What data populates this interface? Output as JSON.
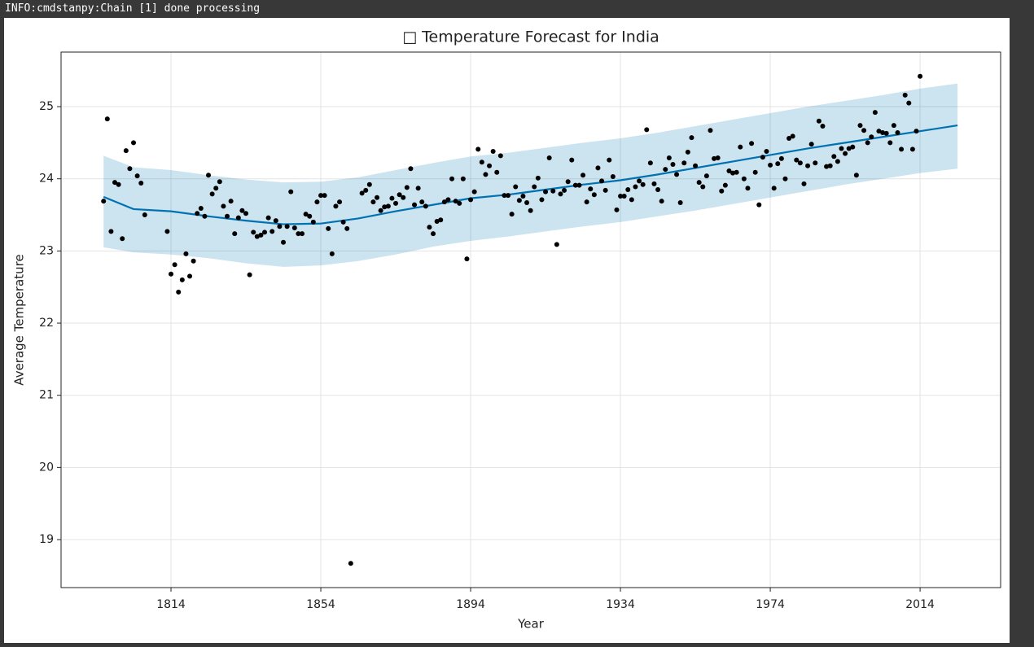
{
  "log": "INFO:cmdstanpy:Chain [1] done processing",
  "chart_data": {
    "type": "forecast",
    "title": "□ Temperature Forecast for India",
    "x_label": "Year",
    "y_label": "Average Temperature",
    "xlim": [
      1784.65,
      2035.5
    ],
    "ylim": [
      18.335,
      25.756
    ],
    "xticks": [
      1814,
      1854,
      1894,
      1934,
      1974,
      2014
    ],
    "yticks": [
      19,
      20,
      21,
      22,
      23,
      24,
      25
    ],
    "grid": true,
    "points": {
      "color": "#000000",
      "x": [
        1796,
        1797,
        1798,
        1799,
        1800,
        1801,
        1802,
        1803,
        1804,
        1805,
        1806,
        1807,
        1813,
        1814,
        1815,
        1816,
        1817,
        1818,
        1819,
        1820,
        1821,
        1822,
        1823,
        1824,
        1825,
        1826,
        1827,
        1828,
        1829,
        1830,
        1831,
        1832,
        1833,
        1834,
        1835,
        1836,
        1837,
        1838,
        1839,
        1840,
        1841,
        1842,
        1843,
        1844,
        1845,
        1846,
        1847,
        1848,
        1849,
        1850,
        1851,
        1852,
        1853,
        1854,
        1855,
        1856,
        1857,
        1858,
        1859,
        1860,
        1861,
        1862,
        1865,
        1866,
        1867,
        1868,
        1869,
        1870,
        1871,
        1872,
        1873,
        1874,
        1875,
        1876,
        1877,
        1878,
        1879,
        1880,
        1881,
        1882,
        1883,
        1884,
        1885,
        1886,
        1887,
        1888,
        1889,
        1890,
        1891,
        1892,
        1893,
        1894,
        1895,
        1896,
        1897,
        1898,
        1899,
        1900,
        1901,
        1902,
        1903,
        1904,
        1905,
        1906,
        1907,
        1908,
        1909,
        1910,
        1911,
        1912,
        1913,
        1914,
        1915,
        1916,
        1917,
        1918,
        1919,
        1920,
        1921,
        1922,
        1923,
        1924,
        1925,
        1926,
        1927,
        1928,
        1929,
        1930,
        1931,
        1932,
        1933,
        1934,
        1935,
        1936,
        1937,
        1938,
        1939,
        1940,
        1941,
        1942,
        1943,
        1944,
        1945,
        1946,
        1947,
        1948,
        1949,
        1950,
        1951,
        1952,
        1953,
        1954,
        1955,
        1956,
        1957,
        1958,
        1959,
        1960,
        1961,
        1962,
        1963,
        1964,
        1965,
        1966,
        1967,
        1968,
        1969,
        1970,
        1971,
        1972,
        1973,
        1974,
        1975,
        1976,
        1977,
        1978,
        1979,
        1980,
        1981,
        1982,
        1983,
        1984,
        1985,
        1986,
        1987,
        1988,
        1989,
        1990,
        1991,
        1992,
        1993,
        1994,
        1995,
        1996,
        1997,
        1998,
        1999,
        2000,
        2001,
        2002,
        2003,
        2004,
        2005,
        2006,
        2007,
        2008,
        2009,
        2010,
        2011,
        2012,
        2013,
        2014
      ],
      "values": [
        23.69,
        24.83,
        23.27,
        23.95,
        23.92,
        23.17,
        24.39,
        24.14,
        24.5,
        24.04,
        23.94,
        23.5,
        23.27,
        22.68,
        22.81,
        22.43,
        22.6,
        22.96,
        22.65,
        22.86,
        23.52,
        23.59,
        23.48,
        24.05,
        23.79,
        23.87,
        23.96,
        23.62,
        23.48,
        23.69,
        23.24,
        23.46,
        23.56,
        23.52,
        22.67,
        23.26,
        23.2,
        23.22,
        23.26,
        23.46,
        23.27,
        23.42,
        23.34,
        23.12,
        23.34,
        23.82,
        23.32,
        23.24,
        23.24,
        23.51,
        23.48,
        23.4,
        23.68,
        23.77,
        23.77,
        23.31,
        22.96,
        23.62,
        23.68,
        23.4,
        23.31,
        18.67,
        23.8,
        23.84,
        23.92,
        23.68,
        23.74,
        23.56,
        23.61,
        23.62,
        23.73,
        23.66,
        23.78,
        23.74,
        23.88,
        24.14,
        23.64,
        23.87,
        23.68,
        23.62,
        23.33,
        23.24,
        23.41,
        23.43,
        23.68,
        23.71,
        24.0,
        23.69,
        23.66,
        24.0,
        22.89,
        23.71,
        23.82,
        24.41,
        24.23,
        24.06,
        24.18,
        24.38,
        24.09,
        24.32,
        23.77,
        23.77,
        23.51,
        23.89,
        23.7,
        23.76,
        23.67,
        23.56,
        23.89,
        24.01,
        23.71,
        23.82,
        24.29,
        23.83,
        23.09,
        23.79,
        23.84,
        23.96,
        24.26,
        23.91,
        23.91,
        24.05,
        23.68,
        23.86,
        23.78,
        24.15,
        23.97,
        23.84,
        24.26,
        24.03,
        23.57,
        23.76,
        23.76,
        23.85,
        23.71,
        23.89,
        23.97,
        23.92,
        24.68,
        24.22,
        23.93,
        23.85,
        23.69,
        24.13,
        24.29,
        24.2,
        24.06,
        23.67,
        24.22,
        24.37,
        24.57,
        24.18,
        23.95,
        23.89,
        24.04,
        24.67,
        24.28,
        24.29,
        23.83,
        23.91,
        24.11,
        24.08,
        24.09,
        24.44,
        24.0,
        23.87,
        24.49,
        24.09,
        23.64,
        24.3,
        24.38,
        24.19,
        23.87,
        24.21,
        24.28,
        24.0,
        24.56,
        24.59,
        24.26,
        24.22,
        23.93,
        24.18,
        24.48,
        24.22,
        24.8,
        24.73,
        24.17,
        24.18,
        24.31,
        24.24,
        24.42,
        24.35,
        24.42,
        24.44,
        24.05,
        24.74,
        24.67,
        24.5,
        24.58,
        24.92,
        24.66,
        24.64,
        24.63,
        24.5,
        24.74,
        24.64,
        24.41,
        25.16,
        25.05,
        24.41,
        24.66,
        25.42
      ]
    },
    "forecast": {
      "color": "#0072b2",
      "band_color": "#0072b2",
      "band_opacity": 0.2,
      "x": [
        1796,
        1804,
        1814,
        1824,
        1834,
        1844,
        1854,
        1864,
        1874,
        1884,
        1894,
        1904,
        1914,
        1924,
        1934,
        1944,
        1954,
        1964,
        1974,
        1984,
        1994,
        2004,
        2014,
        2024
      ],
      "values": [
        23.75,
        23.58,
        23.55,
        23.48,
        23.42,
        23.37,
        23.38,
        23.45,
        23.55,
        23.64,
        23.73,
        23.78,
        23.85,
        23.92,
        23.98,
        24.06,
        24.15,
        24.24,
        24.33,
        24.42,
        24.5,
        24.58,
        24.66,
        24.74
      ],
      "upper": [
        24.32,
        24.16,
        24.12,
        24.05,
        23.99,
        23.95,
        23.96,
        24.02,
        24.12,
        24.22,
        24.31,
        24.36,
        24.43,
        24.5,
        24.56,
        24.64,
        24.73,
        24.82,
        24.91,
        25.0,
        25.08,
        25.16,
        25.25,
        25.32
      ],
      "lower": [
        23.05,
        22.98,
        22.95,
        22.9,
        22.83,
        22.78,
        22.8,
        22.86,
        22.95,
        23.06,
        23.14,
        23.2,
        23.27,
        23.34,
        23.4,
        23.48,
        23.56,
        23.65,
        23.74,
        23.83,
        23.92,
        24.0,
        24.08,
        24.14
      ]
    }
  }
}
